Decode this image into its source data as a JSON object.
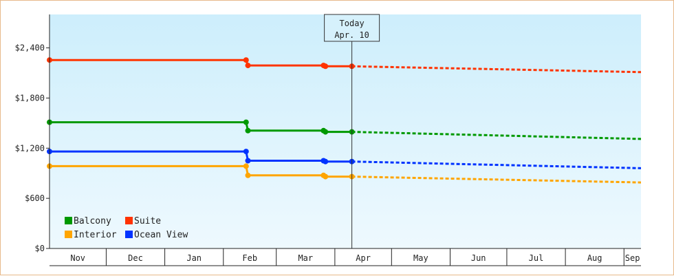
{
  "chart_data": {
    "type": "line",
    "title": "",
    "xlabel": "",
    "ylabel": "",
    "ylim": [
      0,
      2800
    ],
    "y_ticks": [
      {
        "value": 0,
        "label": "$0"
      },
      {
        "value": 600,
        "label": "$600"
      },
      {
        "value": 1200,
        "label": "$1,200"
      },
      {
        "value": 1800,
        "label": "$1,800"
      },
      {
        "value": 2400,
        "label": "$2,400"
      }
    ],
    "x_range": [
      "Nov 1",
      "Sep 10"
    ],
    "months": [
      {
        "label": "Nov",
        "start": "Nov 1"
      },
      {
        "label": "Dec",
        "start": "Dec 1"
      },
      {
        "label": "Jan",
        "start": "Jan 1"
      },
      {
        "label": "Feb",
        "start": "Feb 1"
      },
      {
        "label": "Mar",
        "start": "Mar 1"
      },
      {
        "label": "Apr",
        "start": "Apr 1"
      },
      {
        "label": "May",
        "start": "May 1"
      },
      {
        "label": "Jun",
        "start": "Jun 1"
      },
      {
        "label": "Jul",
        "start": "Jul 1"
      },
      {
        "label": "Aug",
        "start": "Aug 1"
      },
      {
        "label": "Sep",
        "start": "Sep 1"
      }
    ],
    "today": {
      "line1": "Today",
      "line2": "Apr. 10",
      "date": "Apr 10"
    },
    "legend": {
      "placement": "bottom-left"
    },
    "grid": false,
    "series": [
      {
        "name": "Suite",
        "color": "#ff3300",
        "history": [
          [
            "Nov 1",
            2255
          ],
          [
            "Feb 13",
            2255
          ],
          [
            "Feb 14",
            2190
          ],
          [
            "Mar 26",
            2190
          ],
          [
            "Mar 27",
            2180
          ],
          [
            "Apr 10",
            2180
          ]
        ],
        "forecast": [
          [
            "Apr 10",
            2180
          ],
          [
            "Sep 10",
            2110
          ]
        ]
      },
      {
        "name": "Balcony",
        "color": "#009900",
        "history": [
          [
            "Nov 1",
            1510
          ],
          [
            "Feb 13",
            1510
          ],
          [
            "Feb 14",
            1410
          ],
          [
            "Mar 26",
            1410
          ],
          [
            "Mar 27",
            1395
          ],
          [
            "Apr 10",
            1395
          ]
        ],
        "forecast": [
          [
            "Apr 10",
            1395
          ],
          [
            "Sep 10",
            1310
          ]
        ]
      },
      {
        "name": "Ocean View",
        "color": "#0033ff",
        "history": [
          [
            "Nov 1",
            1160
          ],
          [
            "Feb 13",
            1160
          ],
          [
            "Feb 14",
            1050
          ],
          [
            "Mar 26",
            1050
          ],
          [
            "Mar 27",
            1040
          ],
          [
            "Apr 10",
            1040
          ]
        ],
        "forecast": [
          [
            "Apr 10",
            1040
          ],
          [
            "Sep 10",
            960
          ]
        ]
      },
      {
        "name": "Interior",
        "color": "#ffa500",
        "history": [
          [
            "Nov 1",
            985
          ],
          [
            "Feb 13",
            985
          ],
          [
            "Feb 14",
            875
          ],
          [
            "Mar 26",
            875
          ],
          [
            "Mar 27",
            860
          ],
          [
            "Apr 10",
            860
          ]
        ],
        "forecast": [
          [
            "Apr 10",
            860
          ],
          [
            "Sep 10",
            790
          ]
        ]
      }
    ]
  },
  "legend_items": [
    {
      "name": "Balcony",
      "color": "#009900"
    },
    {
      "name": "Suite",
      "color": "#ff3300"
    },
    {
      "name": "Interior",
      "color": "#ffa500"
    },
    {
      "name": "Ocean View",
      "color": "#0033ff"
    }
  ]
}
